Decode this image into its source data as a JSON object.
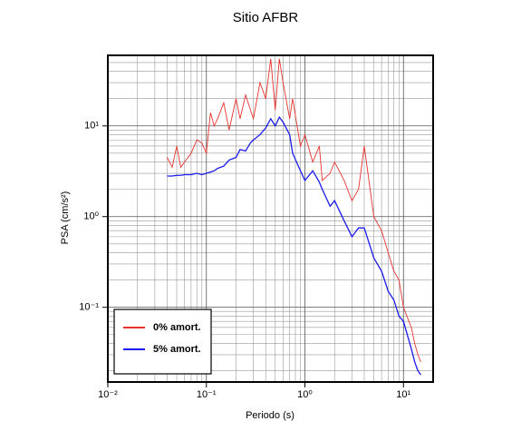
{
  "chart_data": {
    "type": "line",
    "title": "Sitio AFBR",
    "xlabel": "Periodo (s)",
    "ylabel": "PSA (cm/s²)",
    "xscale": "log",
    "yscale": "log",
    "grid": true,
    "legend": "lower left",
    "xlim": [
      0.01,
      20
    ],
    "ylim": [
      0.015,
      60
    ],
    "xticks": [
      {
        "value": 0.01,
        "label": "10⁻²"
      },
      {
        "value": 0.1,
        "label": "10⁻¹"
      },
      {
        "value": 1,
        "label": "10⁰"
      },
      {
        "value": 10,
        "label": "10¹"
      }
    ],
    "yticks": [
      {
        "value": 0.1,
        "label": "10⁻¹"
      },
      {
        "value": 1,
        "label": "10⁰"
      },
      {
        "value": 10,
        "label": "10¹"
      }
    ],
    "x": [
      0.04,
      0.045,
      0.05,
      0.055,
      0.06,
      0.07,
      0.08,
      0.09,
      0.1,
      0.11,
      0.12,
      0.13,
      0.15,
      0.17,
      0.2,
      0.22,
      0.25,
      0.28,
      0.3,
      0.35,
      0.4,
      0.45,
      0.5,
      0.55,
      0.6,
      0.7,
      0.75,
      0.9,
      1.0,
      1.2,
      1.4,
      1.5,
      1.8,
      2.0,
      2.5,
      3.0,
      3.5,
      4,
      5,
      6,
      7,
      8,
      9,
      10,
      12,
      13,
      14,
      15
    ],
    "series": [
      {
        "name": "0% amort.",
        "color": "#e8322e",
        "values": [
          4.5,
          3.5,
          6,
          3.5,
          4,
          5,
          7,
          6.5,
          5,
          14,
          10,
          12,
          18,
          9,
          20,
          12,
          22,
          15,
          12,
          30,
          20,
          55,
          15,
          55,
          30,
          12,
          20,
          6,
          8,
          4,
          6,
          2.5,
          3,
          4,
          2.5,
          1.5,
          2,
          6,
          1,
          0.7,
          0.4,
          0.25,
          0.2,
          0.1,
          0.06,
          0.04,
          0.03,
          0.025
        ]
      },
      {
        "name": "5% amort.",
        "color": "#1a1aee",
        "values": [
          2.8,
          2.8,
          2.85,
          2.85,
          2.9,
          2.9,
          3.0,
          2.9,
          3.0,
          3.1,
          3.2,
          3.4,
          3.6,
          4.2,
          4.5,
          5.5,
          5.3,
          6.5,
          7.0,
          8.0,
          9.5,
          12,
          10,
          12.5,
          11,
          8,
          5,
          3.2,
          2.5,
          3.2,
          2.4,
          2.0,
          1.3,
          1.5,
          0.9,
          0.6,
          0.75,
          0.75,
          0.35,
          0.25,
          0.15,
          0.12,
          0.08,
          0.07,
          0.035,
          0.025,
          0.02,
          0.018
        ]
      }
    ]
  }
}
